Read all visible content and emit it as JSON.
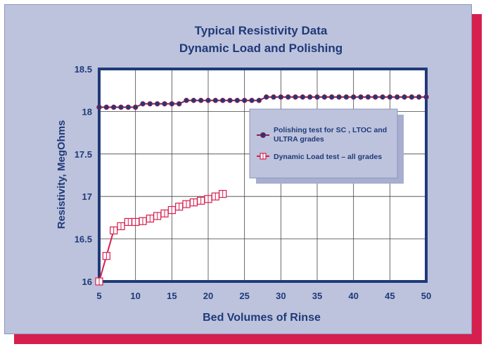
{
  "colors": {
    "panel": "#bdc3dd",
    "shadow": "#d61f4e",
    "axis": "#1f3a78",
    "plot_bg": "#ffffff",
    "series_polishing": "#8c1f4f",
    "series_dynamic": "#d61f4e"
  },
  "chart_data": {
    "type": "line",
    "title": "Typical Resistivity Data",
    "subtitle": "Dynamic Load and Polishing",
    "xlabel": "Bed Volumes of Rinse",
    "ylabel": "Resistivity, MegOhms",
    "xlim": [
      5,
      50
    ],
    "ylim": [
      16,
      18.5
    ],
    "xticks": [
      5,
      10,
      15,
      20,
      25,
      30,
      35,
      40,
      45,
      50
    ],
    "yticks": [
      16,
      16.5,
      17,
      17.5,
      18,
      18.5
    ],
    "ytick_labels": [
      "16",
      "16.5",
      "17",
      "17.5",
      "18",
      "18.5"
    ],
    "grid": true,
    "legend_position": "right, upper half",
    "series": [
      {
        "name": "Polishing test for SC , LTOC and ULTRA grades",
        "marker": "filled-circle",
        "x": [
          5,
          6,
          7,
          8,
          9,
          10,
          11,
          12,
          13,
          14,
          15,
          16,
          17,
          18,
          19,
          20,
          21,
          22,
          23,
          24,
          25,
          26,
          27,
          28,
          29,
          30,
          31,
          32,
          33,
          34,
          35,
          36,
          37,
          38,
          39,
          40,
          41,
          42,
          43,
          44,
          45,
          46,
          47,
          48,
          49,
          50
        ],
        "y": [
          18.05,
          18.05,
          18.05,
          18.05,
          18.05,
          18.05,
          18.09,
          18.09,
          18.09,
          18.09,
          18.09,
          18.09,
          18.13,
          18.13,
          18.13,
          18.13,
          18.13,
          18.13,
          18.13,
          18.13,
          18.13,
          18.13,
          18.13,
          18.17,
          18.17,
          18.17,
          18.17,
          18.17,
          18.17,
          18.17,
          18.17,
          18.17,
          18.17,
          18.17,
          18.17,
          18.17,
          18.17,
          18.17,
          18.17,
          18.17,
          18.17,
          18.17,
          18.17,
          18.17,
          18.17,
          18.17
        ]
      },
      {
        "name": "Dynamic Load test – all grades",
        "marker": "square-cross",
        "x": [
          5,
          6,
          7,
          8,
          9,
          10,
          11,
          12,
          13,
          14,
          15,
          16,
          17,
          18,
          19,
          20,
          21,
          22
        ],
        "y": [
          16.0,
          16.3,
          16.6,
          16.65,
          16.7,
          16.7,
          16.71,
          16.74,
          16.77,
          16.8,
          16.84,
          16.88,
          16.91,
          16.93,
          16.95,
          16.97,
          17.0,
          17.03
        ]
      }
    ]
  }
}
